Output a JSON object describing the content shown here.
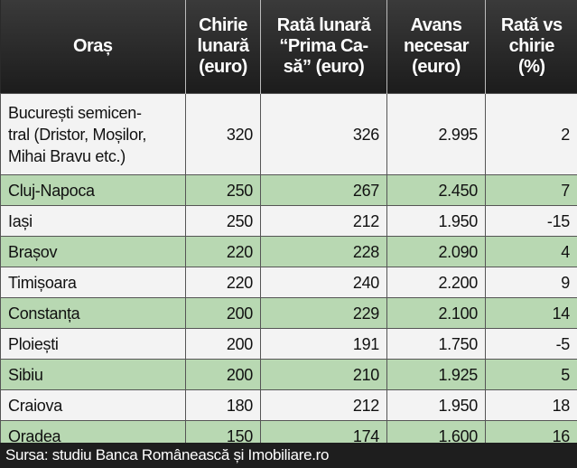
{
  "table": {
    "header": [
      "Oraș",
      "Chirie\nlunară\n(euro)",
      "Rată lunară\n“Prima Ca-\nsă” (euro)",
      "Avans\nnecesar\n(euro)",
      "Rată vs\nchirie\n(%)"
    ],
    "rows": [
      [
        "București semicen-\ntral (Dristor, Moșilor,\nMihai Bravu etc.)",
        "320",
        "326",
        "2.995",
        "2"
      ],
      [
        "Cluj-Napoca",
        "250",
        "267",
        "2.450",
        "7"
      ],
      [
        "Iași",
        "250",
        "212",
        "1.950",
        "-15"
      ],
      [
        "Brașov",
        "220",
        "228",
        "2.090",
        "4"
      ],
      [
        "Timișoara",
        "220",
        "240",
        "2.200",
        "9"
      ],
      [
        "Constanța",
        "200",
        "229",
        "2.100",
        "14"
      ],
      [
        "Ploiești",
        "200",
        "191",
        "1.750",
        "-5"
      ],
      [
        "Sibiu",
        "200",
        "210",
        "1.925",
        "5"
      ],
      [
        "Craiova",
        "180",
        "212",
        "1.950",
        "18"
      ],
      [
        "Oradea",
        "150",
        "174",
        "1.600",
        "16"
      ]
    ]
  },
  "footer": "Sursa: studiu Banca Românească și Imobiliare.ro"
}
